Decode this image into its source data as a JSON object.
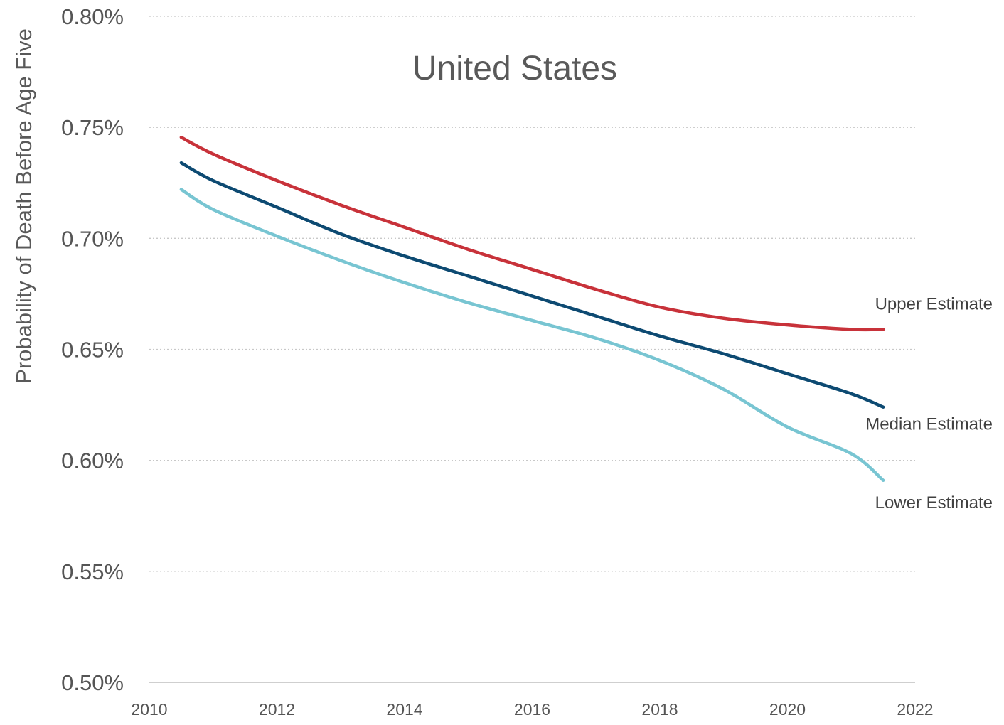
{
  "chart_data": {
    "type": "line",
    "title": "United States",
    "xlabel": "",
    "ylabel": "Probability of Death Before Age Five",
    "xlim": [
      2010,
      2022
    ],
    "ylim": [
      0.005,
      0.008
    ],
    "x_ticks": [
      2010,
      2012,
      2014,
      2016,
      2018,
      2020,
      2022
    ],
    "x_tick_labels": [
      "2010",
      "2012",
      "2014",
      "2016",
      "2018",
      "2020",
      "2022"
    ],
    "y_ticks": [
      0.005,
      0.0055,
      0.006,
      0.0065,
      0.007,
      0.0075,
      0.008
    ],
    "y_tick_labels": [
      "0.50%",
      "0.55%",
      "0.60%",
      "0.65%",
      "0.70%",
      "0.75%",
      "0.80%"
    ],
    "grid": true,
    "legend": "inline labels at right end of each line",
    "x": [
      2010.5,
      2011,
      2012,
      2013,
      2014,
      2015,
      2016,
      2017,
      2018,
      2019,
      2020,
      2021,
      2021.5
    ],
    "series": [
      {
        "name": "Upper Estimate",
        "color": "#c8323a",
        "values": [
          0.007455,
          0.00738,
          0.00726,
          0.00715,
          0.00705,
          0.00695,
          0.00686,
          0.00677,
          0.00669,
          0.00664,
          0.00661,
          0.00659,
          0.00659
        ]
      },
      {
        "name": "Median Estimate",
        "color": "#0d4a72",
        "values": [
          0.00734,
          0.00726,
          0.00714,
          0.00702,
          0.00692,
          0.00683,
          0.00674,
          0.00665,
          0.00656,
          0.00648,
          0.00639,
          0.0063,
          0.00624
        ]
      },
      {
        "name": "Lower Estimate",
        "color": "#78c5d2",
        "values": [
          0.00722,
          0.00713,
          0.00701,
          0.0069,
          0.0068,
          0.00671,
          0.00663,
          0.00655,
          0.00645,
          0.00632,
          0.00615,
          0.00603,
          0.00591
        ]
      }
    ]
  }
}
